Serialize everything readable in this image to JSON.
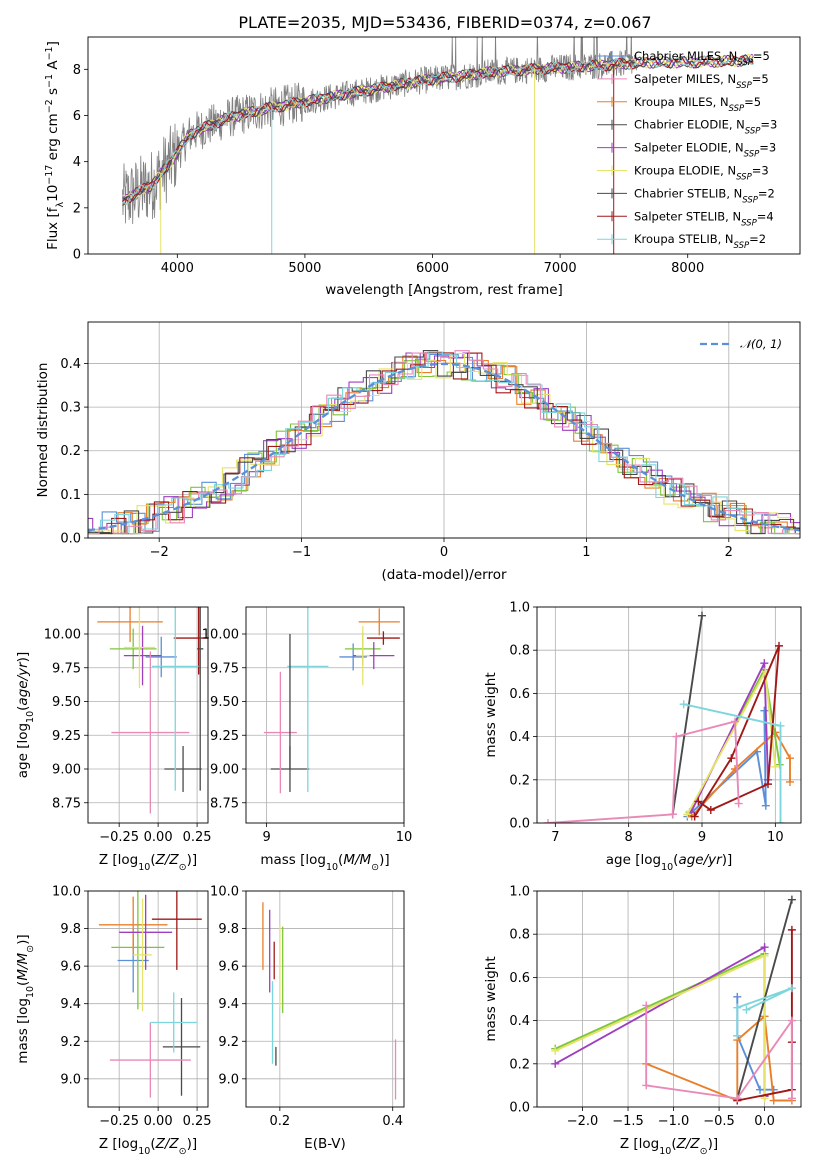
{
  "figure_title": "PLATE=2035, MJD=53436, FIBERID=0374, z=0.067",
  "series_colors": [
    "#5b8fd8",
    "#e97f2a",
    "#7fc63a",
    "#9e3fc0",
    "#e6e36a",
    "#4a4a4a",
    "#a01818",
    "#e889b8",
    "#7dd6dc"
  ],
  "chart_data": [
    {
      "id": "spectrum",
      "type": "line",
      "title": "PLATE=2035, MJD=53436, FIBERID=0374, z=0.067",
      "xlabel": "wavelength [Angstrom, rest frame]",
      "ylabel": "Flux [f_λ10^-17 erg cm^-2 s^-1 A^-1]",
      "xlim": [
        3300,
        8880
      ],
      "ylim": [
        0,
        9.4
      ],
      "xticks": [
        4000,
        5000,
        6000,
        7000,
        8000
      ],
      "yticks": [
        0,
        2,
        4,
        6,
        8
      ],
      "legend_position": "upper-right",
      "data_color": "#808080",
      "continuum": {
        "x": [
          3570,
          3800,
          3950,
          4100,
          4400,
          4700,
          5000,
          5300,
          5600,
          5900,
          6200,
          6500,
          6800,
          7100,
          7400,
          7700,
          8000,
          8300,
          8520
        ],
        "y": [
          2.3,
          3.0,
          4.0,
          5.2,
          5.9,
          6.3,
          6.6,
          6.9,
          7.2,
          7.5,
          7.7,
          7.9,
          8.0,
          8.1,
          8.2,
          8.3,
          8.3,
          8.35,
          8.4
        ]
      },
      "series": [
        {
          "name": "Chabrier MILES, N_SSP=5",
          "color": "#5b8fd8"
        },
        {
          "name": "Salpeter MILES, N_SSP=5",
          "color": "#e889b8"
        },
        {
          "name": "Kroupa MILES, N_SSP=5",
          "color": "#e97f2a"
        },
        {
          "name": "Chabrier ELODIE, N_SSP=3",
          "color": "#4a4a4a"
        },
        {
          "name": "Salpeter ELODIE, N_SSP=3",
          "color": "#9e3fc0"
        },
        {
          "name": "Kroupa ELODIE, N_SSP=3",
          "color": "#e6e36a"
        },
        {
          "name": "Chabrier STELIB, N_SSP=2",
          "color": "#4a4a4a"
        },
        {
          "name": "Salpeter STELIB, N_SSP=4",
          "color": "#a01818"
        },
        {
          "name": "Kroupa STELIB, N_SSP=2",
          "color": "#7dd6dc"
        }
      ]
    },
    {
      "id": "residuals",
      "type": "histogram",
      "xlabel": "(data-model)/error",
      "ylabel": "Normed distribution",
      "xlim": [
        -2.5,
        2.5
      ],
      "ylim": [
        0,
        0.495
      ],
      "xticks": [
        -2,
        -1,
        0,
        1,
        2
      ],
      "yticks": [
        0.0,
        0.1,
        0.2,
        0.3,
        0.4
      ],
      "grid": true,
      "legend_position": "upper-right",
      "reference": {
        "name": "𝒩(0, 1)",
        "color": "#5b8fd8",
        "mean": 0,
        "sigma": 1
      }
    },
    {
      "id": "age_vs_Z",
      "type": "errorbar",
      "xlabel": "Z [log10(Z/Z⊙)]",
      "ylabel": "age  [log10(age/yr)]",
      "xlim": [
        -0.45,
        0.32
      ],
      "ylim": [
        8.6,
        10.2
      ],
      "xticks": [
        -0.25,
        0.0,
        0.25
      ],
      "xticklabels": [
        "−0.25",
        "0.00",
        "0.25"
      ],
      "yticks": [
        8.75,
        9.0,
        9.25,
        9.5,
        9.75,
        10.0
      ],
      "points": [
        {
          "x": 0.02,
          "y": 9.83,
          "xerr": 0.1,
          "yerr": 0.15,
          "color": "#5b8fd8"
        },
        {
          "x": -0.18,
          "y": 10.09,
          "xerr": 0.21,
          "yerr": 0.15,
          "color": "#e97f2a"
        },
        {
          "x": -0.16,
          "y": 9.89,
          "xerr": 0.15,
          "yerr": 0.15,
          "color": "#7fc63a"
        },
        {
          "x": -0.1,
          "y": 9.84,
          "xerr": 0.12,
          "yerr": 0.22,
          "color": "#9e3fc0"
        },
        {
          "x": -0.12,
          "y": 9.9,
          "xerr": 0.1,
          "yerr": 0.3,
          "color": "#e6e36a"
        },
        {
          "x": 0.16,
          "y": 9.0,
          "xerr": 0.12,
          "yerr": 0.17,
          "color": "#4a4a4a"
        },
        {
          "x": 0.26,
          "y": 9.97,
          "xerr": 0.16,
          "yerr": 0.27,
          "color": "#a01818"
        },
        {
          "x": -0.05,
          "y": 9.27,
          "xerr": 0.25,
          "yerr": 0.6,
          "color": "#e889b8"
        },
        {
          "x": 0.11,
          "y": 9.76,
          "xerr": 0.15,
          "yerr": 0.92,
          "color": "#7dd6dc"
        },
        {
          "x": 0.27,
          "y": 9.89,
          "xerr": 0.02,
          "yerr": 1.05,
          "color": "#4a4a4a"
        }
      ]
    },
    {
      "id": "age_vs_mass",
      "type": "errorbar",
      "xlabel": "mass [log10(M/M⊙)]",
      "ylabel": "",
      "xlim": [
        8.85,
        10.0
      ],
      "ylim": [
        8.6,
        10.2
      ],
      "xticks": [
        9,
        10
      ],
      "yticks": [
        8.75,
        9.0,
        9.25,
        9.5,
        9.75,
        10.0
      ],
      "points": [
        {
          "x": 9.63,
          "y": 9.83,
          "xerr": 0.1,
          "yerr": 0.1,
          "color": "#5b8fd8"
        },
        {
          "x": 9.82,
          "y": 10.09,
          "xerr": 0.15,
          "yerr": 0.1,
          "color": "#e97f2a"
        },
        {
          "x": 9.7,
          "y": 9.89,
          "xerr": 0.13,
          "yerr": 0.12,
          "color": "#7fc63a"
        },
        {
          "x": 9.78,
          "y": 9.84,
          "xerr": 0.15,
          "yerr": 0.1,
          "color": "#9e3fc0"
        },
        {
          "x": 9.7,
          "y": 9.84,
          "xerr": 0.05,
          "yerr": 0.22,
          "color": "#e6e36a"
        },
        {
          "x": 9.17,
          "y": 9.0,
          "xerr": 0.14,
          "yerr": 0.17,
          "color": "#4a4a4a"
        },
        {
          "x": 9.85,
          "y": 9.97,
          "xerr": 0.12,
          "yerr": 0.05,
          "color": "#a01818"
        },
        {
          "x": 9.1,
          "y": 9.27,
          "xerr": 0.12,
          "yerr": 0.45,
          "color": "#e889b8"
        },
        {
          "x": 9.3,
          "y": 9.76,
          "xerr": 0.15,
          "yerr": 0.93,
          "color": "#7dd6dc"
        },
        {
          "x": 9.17,
          "y": 9.5,
          "xerr": 0.0,
          "yerr": 0.5,
          "color": "#4a4a4a"
        }
      ]
    },
    {
      "id": "weight_vs_age",
      "type": "line",
      "xlabel": "age  [log10(age/yr)]",
      "ylabel": "mass weight",
      "xlim": [
        6.75,
        10.35
      ],
      "ylim": [
        0,
        1.0
      ],
      "xticks": [
        7,
        8,
        9,
        10
      ],
      "yticks": [
        0.0,
        0.2,
        0.4,
        0.6,
        0.8,
        1.0
      ],
      "grid": true,
      "series": [
        {
          "color": "#5b8fd8",
          "x": [
            8.8,
            9.75,
            9.87,
            9.85
          ],
          "y": [
            0.03,
            0.33,
            0.08,
            0.52
          ]
        },
        {
          "color": "#e97f2a",
          "x": [
            8.86,
            9.45,
            10.0,
            10.2,
            10.2
          ],
          "y": [
            0.03,
            0.25,
            0.42,
            0.3,
            0.19
          ]
        },
        {
          "color": "#7fc63a",
          "x": [
            8.83,
            9.85,
            10.06
          ],
          "y": [
            0.05,
            0.71,
            0.27
          ]
        },
        {
          "color": "#9e3fc0",
          "x": [
            8.85,
            9.85,
            9.9
          ],
          "y": [
            0.05,
            0.74,
            0.2
          ]
        },
        {
          "color": "#e6e36a",
          "x": [
            8.8,
            9.86,
            10.0
          ],
          "y": [
            0.04,
            0.7,
            0.26
          ]
        },
        {
          "color": "#4a4a4a",
          "x": [
            8.6,
            9.0
          ],
          "y": [
            0.04,
            0.96
          ]
        },
        {
          "color": "#a01818",
          "x": [
            8.9,
            9.4,
            10.05,
            9.9,
            9.12,
            8.95
          ],
          "y": [
            0.03,
            0.3,
            0.82,
            0.18,
            0.06,
            0.1
          ]
        },
        {
          "color": "#e889b8",
          "x": [
            6.9,
            8.6,
            8.65,
            9.45,
            9.5
          ],
          "y": [
            0.0,
            0.04,
            0.4,
            0.47,
            0.09
          ]
        },
        {
          "color": "#7dd6dc",
          "x": [
            8.75,
            10.07,
            10.07
          ],
          "y": [
            0.55,
            0.45,
            0.0
          ]
        }
      ]
    },
    {
      "id": "mass_vs_Z",
      "type": "errorbar",
      "xlabel": "Z [log10(Z/Z⊙)]",
      "ylabel": "mass [log10(M/M⊙)]",
      "xlim": [
        -0.45,
        0.32
      ],
      "ylim": [
        8.85,
        10.0
      ],
      "xticks": [
        -0.25,
        0.0,
        0.25
      ],
      "xticklabels": [
        "−0.25",
        "0.00",
        "0.25"
      ],
      "yticks": [
        9.0,
        9.2,
        9.4,
        9.6,
        9.8,
        10.0
      ],
      "points": [
        {
          "x": -0.16,
          "y": 9.63,
          "xerr": 0.1,
          "yerr": 0.17,
          "color": "#5b8fd8"
        },
        {
          "x": -0.16,
          "y": 9.82,
          "xerr": 0.22,
          "yerr": 0.15,
          "color": "#e97f2a"
        },
        {
          "x": -0.13,
          "y": 9.7,
          "xerr": 0.17,
          "yerr": 0.33,
          "color": "#7fc63a"
        },
        {
          "x": -0.08,
          "y": 9.78,
          "xerr": 0.17,
          "yerr": 0.2,
          "color": "#9e3fc0"
        },
        {
          "x": -0.1,
          "y": 9.66,
          "xerr": 0.06,
          "yerr": 0.3,
          "color": "#e6e36a"
        },
        {
          "x": 0.15,
          "y": 9.17,
          "xerr": 0.12,
          "yerr": 0.26,
          "color": "#4a4a4a"
        },
        {
          "x": 0.12,
          "y": 9.85,
          "xerr": 0.16,
          "yerr": 0.27,
          "color": "#a01818"
        },
        {
          "x": -0.05,
          "y": 9.1,
          "xerr": 0.26,
          "yerr": 0.2,
          "color": "#e889b8"
        },
        {
          "x": 0.1,
          "y": 9.3,
          "xerr": 0.15,
          "yerr": 0.16,
          "color": "#7dd6dc"
        }
      ]
    },
    {
      "id": "mass_vs_ebv",
      "type": "errorbar",
      "xlabel": "E(B-V)",
      "ylabel": "",
      "xlim": [
        0.14,
        0.42
      ],
      "ylim": [
        8.85,
        10.0
      ],
      "xticks": [
        0.2,
        0.4
      ],
      "xticklabels": [
        "0.2",
        "0.4"
      ],
      "yticks": [
        9.0,
        9.2,
        9.4,
        9.6,
        9.8,
        10.0
      ],
      "points": [
        {
          "x": 0.17,
          "y": 9.76,
          "xerr": 0.0,
          "yerr": 0.18,
          "color": "#e97f2a"
        },
        {
          "x": 0.182,
          "y": 9.68,
          "xerr": 0.0,
          "yerr": 0.22,
          "color": "#9e3fc0"
        },
        {
          "x": 0.19,
          "y": 9.63,
          "xerr": 0.0,
          "yerr": 0.1,
          "color": "#a01818"
        },
        {
          "x": 0.2,
          "y": 9.6,
          "xerr": 0.0,
          "yerr": 0.22,
          "color": "#e6e36a"
        },
        {
          "x": 0.205,
          "y": 9.58,
          "xerr": 0.0,
          "yerr": 0.23,
          "color": "#7fc63a"
        },
        {
          "x": 0.187,
          "y": 9.3,
          "xerr": 0.0,
          "yerr": 0.22,
          "color": "#7dd6dc"
        },
        {
          "x": 0.193,
          "y": 9.12,
          "xerr": 0.0,
          "yerr": 0.05,
          "color": "#4a4a4a"
        },
        {
          "x": 0.405,
          "y": 9.05,
          "xerr": 0.0,
          "yerr": 0.16,
          "color": "#e889b8"
        }
      ]
    },
    {
      "id": "weight_vs_Z",
      "type": "line",
      "xlabel": "Z [log10(Z/Z⊙)]",
      "ylabel": "mass weight",
      "xlim": [
        -2.5,
        0.4
      ],
      "ylim": [
        0,
        1.0
      ],
      "xticks": [
        -2.0,
        -1.5,
        -1.0,
        -0.5,
        0.0
      ],
      "xticklabels": [
        "−2.0",
        "−1.5",
        "−1.0",
        "−0.5",
        "0.0"
      ],
      "yticks": [
        0.0,
        0.2,
        0.4,
        0.6,
        0.8,
        1.0
      ],
      "grid": true,
      "series": [
        {
          "color": "#5b8fd8",
          "x": [
            -0.3,
            -0.3,
            -0.05,
            0.1
          ],
          "y": [
            0.51,
            0.33,
            0.08,
            0.08
          ]
        },
        {
          "color": "#e97f2a",
          "x": [
            -1.3,
            -0.3,
            -0.3,
            0.0,
            0.1,
            0.3
          ],
          "y": [
            0.2,
            0.03,
            0.31,
            0.42,
            0.03,
            0.03
          ]
        },
        {
          "color": "#7fc63a",
          "x": [
            -2.3,
            0.0,
            0.0
          ],
          "y": [
            0.27,
            0.71,
            0.05
          ]
        },
        {
          "color": "#9e3fc0",
          "x": [
            -2.3,
            0.0,
            0.0
          ],
          "y": [
            0.2,
            0.74,
            0.05
          ]
        },
        {
          "color": "#e6e36a",
          "x": [
            -2.3,
            0.0,
            0.0
          ],
          "y": [
            0.26,
            0.7,
            0.04
          ]
        },
        {
          "color": "#4a4a4a",
          "x": [
            -0.3,
            0.3
          ],
          "y": [
            0.04,
            0.96
          ]
        },
        {
          "color": "#a01818",
          "x": [
            0.3,
            0.3,
            0.3,
            -0.3
          ],
          "y": [
            0.82,
            0.3,
            0.08,
            0.03
          ]
        },
        {
          "color": "#e889b8",
          "x": [
            -1.3,
            -1.3,
            -0.3,
            0.3,
            0.3
          ],
          "y": [
            0.47,
            0.1,
            0.04,
            0.4,
            0.04
          ]
        },
        {
          "color": "#7dd6dc",
          "x": [
            -0.2,
            0.3,
            -0.3,
            -0.3
          ],
          "y": [
            0.45,
            0.55,
            0.46,
            0.33
          ]
        }
      ]
    }
  ]
}
